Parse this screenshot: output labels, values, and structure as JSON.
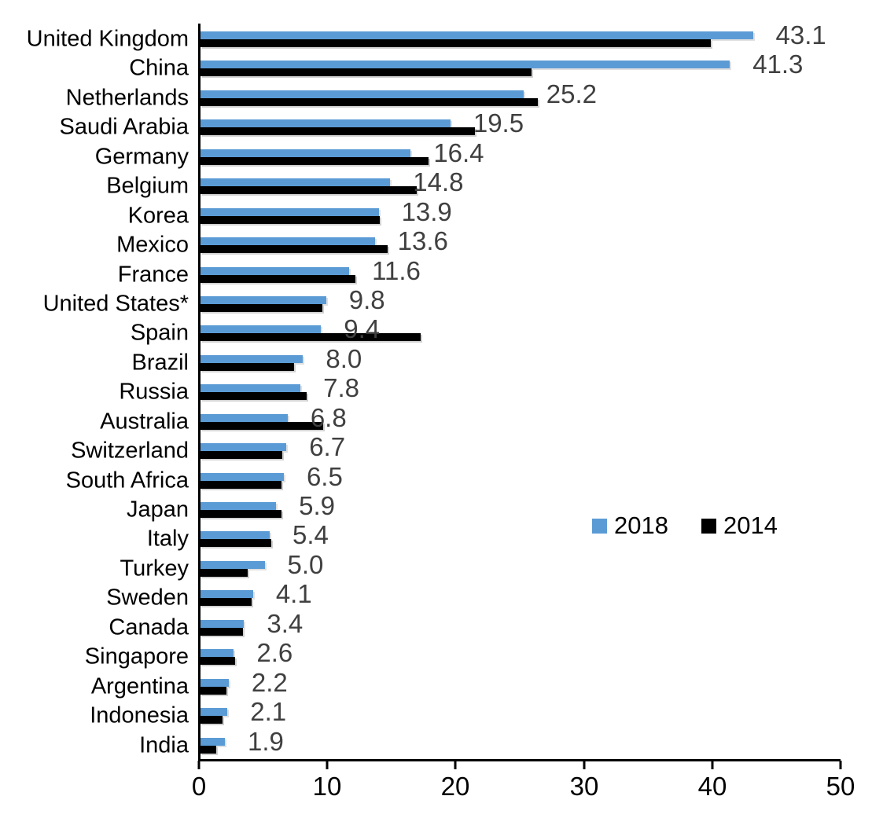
{
  "chart_data": {
    "type": "bar",
    "orientation": "horizontal",
    "title": "",
    "xlabel": "",
    "ylabel": "",
    "grid": false,
    "xlim": [
      0,
      50
    ],
    "x_ticks": [
      "0",
      "10",
      "20",
      "30",
      "40",
      "50"
    ],
    "categories": [
      "United Kingdom",
      "China",
      "Netherlands",
      "Saudi Arabia",
      "Germany",
      "Belgium",
      "Korea",
      "Mexico",
      "France",
      "United States*",
      "Spain",
      "Brazil",
      "Russia",
      "Australia",
      "Switzerland",
      "South Africa",
      "Japan",
      "Italy",
      "Turkey",
      "Sweden",
      "Canada",
      "Singapore",
      "Argentina",
      "Indonesia",
      "India"
    ],
    "series": [
      {
        "name": "2018",
        "color": "#5B9BD5",
        "values": [
          43.1,
          41.3,
          25.2,
          19.5,
          16.4,
          14.8,
          13.9,
          13.6,
          11.6,
          9.8,
          9.4,
          8.0,
          7.8,
          6.8,
          6.7,
          6.5,
          5.9,
          5.4,
          5.0,
          4.1,
          3.4,
          2.6,
          2.2,
          2.1,
          1.9
        ]
      },
      {
        "name": "2014",
        "color": "#000000",
        "values": [
          39.8,
          25.8,
          26.3,
          21.4,
          17.8,
          16.9,
          14.0,
          14.6,
          12.1,
          9.5,
          17.2,
          7.3,
          8.3,
          9.6,
          6.4,
          6.3,
          6.3,
          5.5,
          3.7,
          4.0,
          3.3,
          2.7,
          2.0,
          1.7,
          1.2
        ]
      }
    ],
    "data_labels": {
      "series": "2018",
      "color": "#404040",
      "values": [
        "43.1",
        "41.3",
        "25.2",
        "19.5",
        "16.4",
        "14.8",
        "13.9",
        "13.6",
        "11.6",
        "9.8",
        "9.4",
        "8.0",
        "7.8",
        "6.8",
        "6.7",
        "6.5",
        "5.9",
        "5.4",
        "5.0",
        "4.1",
        "3.4",
        "2.6",
        "2.2",
        "2.1",
        "1.9"
      ]
    },
    "legend": {
      "position": "middle-right",
      "items": [
        {
          "label": "2018",
          "color": "#5B9BD5"
        },
        {
          "label": "2014",
          "color": "#000000"
        }
      ]
    }
  }
}
